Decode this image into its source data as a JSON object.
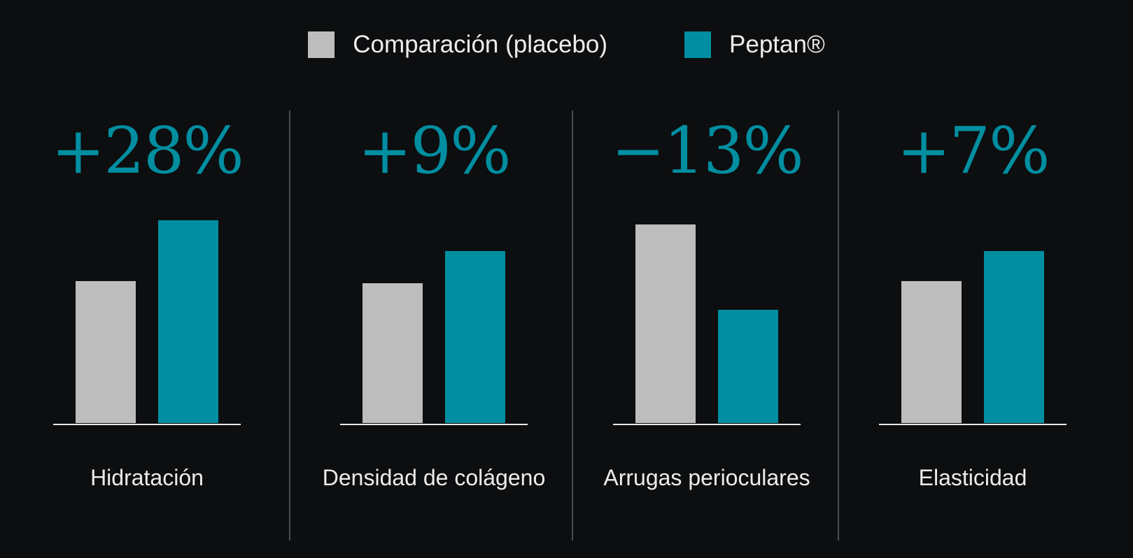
{
  "colors": {
    "placebo": "#bdbdbd",
    "peptan": "#008ea0",
    "background": "#0d0e10"
  },
  "chart_data": {
    "type": "bar",
    "legend": {
      "position": "top-center",
      "entries": [
        {
          "key": "placebo",
          "label": "Comparación (placebo)"
        },
        {
          "key": "peptan",
          "label": "Peptan®"
        }
      ]
    },
    "ylim": [
      0,
      100
    ],
    "grid": false,
    "categories": [
      "Hidratación",
      "Densidad de colágeno",
      "Arrugas perioculares",
      "Elasticidad"
    ],
    "panels": [
      {
        "category": "Hidratación",
        "change_label": "+28%",
        "placebo": 70,
        "peptan": 100
      },
      {
        "category": "Densidad de colágeno",
        "change_label": "+9%",
        "placebo": 69,
        "peptan": 85
      },
      {
        "category": "Arrugas perioculares",
        "change_label": "−13%",
        "placebo": 98,
        "peptan": 56
      },
      {
        "category": "Elasticidad",
        "change_label": "+7%",
        "placebo": 70,
        "peptan": 85
      }
    ]
  }
}
